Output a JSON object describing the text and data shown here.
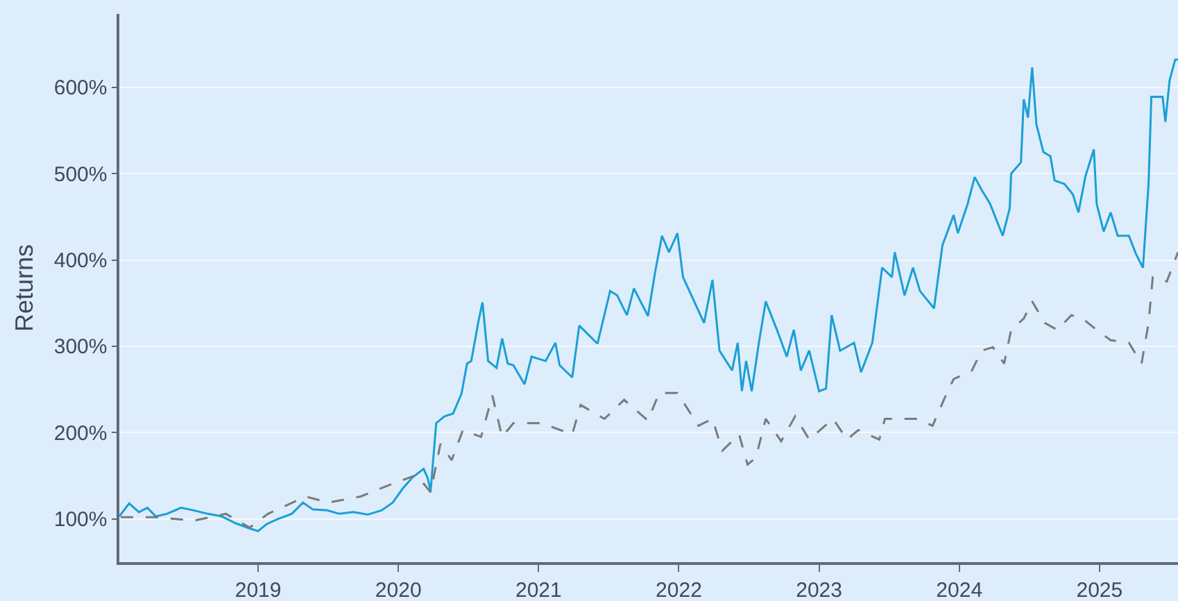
{
  "chart_data": {
    "type": "line",
    "ylabel": "Returns",
    "xlim": [
      2018.01,
      2025.56
    ],
    "ylim": [
      50,
      685
    ],
    "xticks": [
      2019,
      2020,
      2021,
      2022,
      2023,
      2024,
      2025
    ],
    "yticks": [
      {
        "value": 100,
        "label": "100%"
      },
      {
        "value": 200,
        "label": "200%"
      },
      {
        "value": 300,
        "label": "300%"
      },
      {
        "value": 400,
        "label": "400%"
      },
      {
        "value": 500,
        "label": "500%"
      },
      {
        "value": 600,
        "label": "600%"
      }
    ],
    "grid": "y",
    "marker": "none",
    "series": [
      {
        "color": "#1a9fd6",
        "line_style": "solid",
        "x": [
          2018.01,
          2018.08,
          2018.15,
          2018.21,
          2018.27,
          2018.35,
          2018.45,
          2018.54,
          2018.64,
          2018.74,
          2018.84,
          2018.94,
          2019.0,
          2019.06,
          2019.14,
          2019.24,
          2019.32,
          2019.39,
          2019.49,
          2019.58,
          2019.68,
          2019.78,
          2019.88,
          2019.96,
          2020.03,
          2020.1,
          2020.18,
          2020.21,
          2020.23,
          2020.27,
          2020.33,
          2020.39,
          2020.45,
          2020.49,
          2020.52,
          2020.57,
          2020.6,
          2020.64,
          2020.7,
          2020.74,
          2020.78,
          2020.82,
          2020.9,
          2020.95,
          2021.05,
          2021.12,
          2021.15,
          2021.24,
          2021.29,
          2021.42,
          2021.51,
          2021.56,
          2021.63,
          2021.68,
          2021.78,
          2021.83,
          2021.88,
          2021.93,
          2021.99,
          2022.03,
          2022.09,
          2022.18,
          2022.24,
          2022.29,
          2022.38,
          2022.42,
          2022.45,
          2022.48,
          2022.52,
          2022.57,
          2022.62,
          2022.7,
          2022.77,
          2022.82,
          2022.87,
          2022.93,
          2023.0,
          2023.05,
          2023.09,
          2023.15,
          2023.25,
          2023.3,
          2023.38,
          2023.45,
          2023.52,
          2023.54,
          2023.61,
          2023.67,
          2023.72,
          2023.82,
          2023.88,
          2023.96,
          2023.99,
          2024.06,
          2024.11,
          2024.16,
          2024.22,
          2024.31,
          2024.36,
          2024.37,
          2024.44,
          2024.46,
          2024.49,
          2024.52,
          2024.55,
          2024.6,
          2024.65,
          2024.68,
          2024.75,
          2024.81,
          2024.85,
          2024.9,
          2024.96,
          2024.98,
          2025.03,
          2025.08,
          2025.13,
          2025.21,
          2025.26,
          2025.31,
          2025.35,
          2025.37,
          2025.45,
          2025.47,
          2025.5,
          2025.54,
          2025.56
        ],
        "values": [
          103,
          118,
          108,
          113,
          103,
          106,
          113,
          110,
          106,
          103,
          95,
          89,
          86,
          94,
          100,
          106,
          119,
          111,
          110,
          106,
          108,
          105,
          110,
          119,
          135,
          148,
          158,
          147,
          132,
          211,
          219,
          222,
          245,
          280,
          283,
          328,
          351,
          283,
          275,
          309,
          280,
          278,
          256,
          288,
          283,
          304,
          278,
          264,
          324,
          303,
          364,
          359,
          336,
          367,
          335,
          385,
          428,
          409,
          431,
          380,
          359,
          327,
          377,
          295,
          272,
          304,
          248,
          283,
          248,
          303,
          352,
          319,
          288,
          319,
          272,
          295,
          248,
          251,
          336,
          295,
          304,
          270,
          304,
          391,
          380,
          409,
          359,
          391,
          364,
          344,
          417,
          452,
          431,
          465,
          496,
          481,
          465,
          428,
          460,
          500,
          513,
          586,
          565,
          623,
          557,
          525,
          520,
          492,
          488,
          476,
          455,
          497,
          528,
          465,
          433,
          455,
          428,
          428,
          407,
          391,
          488,
          589,
          589,
          560,
          608,
          632,
          632
        ]
      },
      {
        "color": "#7a7a7a",
        "line_style": "dashed",
        "x": [
          2018.02,
          2018.28,
          2018.54,
          2018.77,
          2018.94,
          2019.07,
          2019.34,
          2019.5,
          2019.73,
          2019.93,
          2020.13,
          2020.23,
          2020.3,
          2020.38,
          2020.46,
          2020.59,
          2020.67,
          2020.74,
          2020.82,
          2021.02,
          2021.24,
          2021.3,
          2021.47,
          2021.61,
          2021.78,
          2021.86,
          2021.99,
          2022.14,
          2022.24,
          2022.31,
          2022.43,
          2022.49,
          2022.55,
          2022.62,
          2022.73,
          2022.83,
          2022.93,
          2023.1,
          2023.2,
          2023.28,
          2023.43,
          2023.47,
          2023.69,
          2023.81,
          2023.89,
          2023.96,
          2024.09,
          2024.16,
          2024.24,
          2024.32,
          2024.37,
          2024.46,
          2024.52,
          2024.61,
          2024.7,
          2024.8,
          2024.88,
          2024.98,
          2025.08,
          2025.21,
          2025.3,
          2025.35,
          2025.38,
          2025.48,
          2025.56
        ],
        "values": [
          102,
          102,
          98,
          106,
          90,
          106,
          126,
          119,
          126,
          139,
          151,
          131,
          187,
          168,
          203,
          195,
          243,
          195,
          211,
          211,
          198,
          232,
          216,
          238,
          214,
          246,
          246,
          208,
          216,
          179,
          198,
          163,
          171,
          216,
          190,
          219,
          192,
          216,
          192,
          203,
          192,
          216,
          216,
          208,
          238,
          262,
          272,
          295,
          299,
          280,
          319,
          332,
          352,
          327,
          319,
          336,
          332,
          319,
          307,
          304,
          280,
          327,
          380,
          375,
          409
        ]
      }
    ]
  }
}
